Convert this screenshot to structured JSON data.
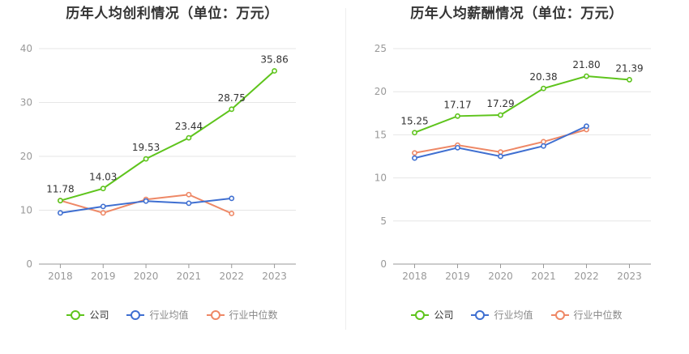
{
  "chart_data": [
    {
      "type": "line",
      "title": "历年人均创利情况（单位：万元）",
      "categories": [
        "2018",
        "2019",
        "2020",
        "2021",
        "2022",
        "2023"
      ],
      "ylim": [
        0,
        40
      ],
      "yticks": [
        0,
        10,
        20,
        30,
        40
      ],
      "grid": true,
      "legend_placement": "bottom-center",
      "series": [
        {
          "name": "公司",
          "color": "#5ec41c",
          "labels": true,
          "values": [
            11.78,
            14.03,
            19.53,
            23.44,
            28.75,
            35.86
          ]
        },
        {
          "name": "行业均值",
          "color": "#3f6fd1",
          "labels": false,
          "values": [
            9.5,
            10.7,
            11.7,
            11.3,
            12.2,
            null
          ]
        },
        {
          "name": "行业中位数",
          "color": "#ee8866",
          "labels": false,
          "values": [
            11.8,
            9.5,
            12.0,
            12.9,
            9.4,
            null
          ]
        }
      ]
    },
    {
      "type": "line",
      "title": "历年人均薪酬情况（单位：万元）",
      "categories": [
        "2018",
        "2019",
        "2020",
        "2021",
        "2022",
        "2023"
      ],
      "ylim": [
        0,
        25
      ],
      "yticks": [
        0,
        5,
        10,
        15,
        20,
        25
      ],
      "grid": true,
      "legend_placement": "bottom-center",
      "series": [
        {
          "name": "公司",
          "color": "#5ec41c",
          "labels": true,
          "values": [
            15.25,
            17.17,
            17.29,
            20.38,
            21.8,
            21.39
          ]
        },
        {
          "name": "行业均值",
          "color": "#3f6fd1",
          "labels": false,
          "values": [
            12.3,
            13.5,
            12.5,
            13.7,
            16.0,
            null
          ]
        },
        {
          "name": "行业中位数",
          "color": "#ee8866",
          "labels": false,
          "values": [
            12.9,
            13.8,
            13.0,
            14.2,
            15.6,
            null
          ]
        }
      ]
    }
  ]
}
